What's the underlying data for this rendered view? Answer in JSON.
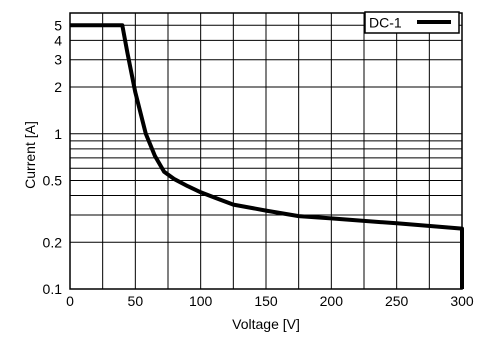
{
  "chart_data": {
    "type": "line",
    "title": "",
    "xlabel": "Voltage [V]",
    "ylabel": "Current [A]",
    "xlim": [
      0,
      300
    ],
    "ylim": [
      0.1,
      6
    ],
    "y_scale": "log",
    "x_ticks": [
      0,
      50,
      100,
      150,
      200,
      250,
      300
    ],
    "x_tick_labels": [
      "0",
      "50",
      "100",
      "150",
      "200",
      "250",
      "300"
    ],
    "x_minor_gridlines": [
      25,
      75,
      125,
      175,
      225,
      275
    ],
    "y_ticks": [
      0.1,
      0.2,
      0.5,
      1,
      2,
      3,
      4,
      5
    ],
    "y_tick_labels": [
      "0.1",
      "0.2",
      "0.5",
      "1",
      "2",
      "3",
      "4",
      "5"
    ],
    "y_gridlines": [
      0.1,
      0.2,
      0.3,
      0.4,
      0.5,
      0.6,
      0.7,
      0.8,
      0.9,
      1,
      2,
      3,
      4,
      5
    ],
    "grid": true,
    "legend_position": "top-right",
    "series": [
      {
        "name": "DC-1",
        "color": "#000000",
        "x": [
          0,
          40,
          44,
          50,
          58,
          65,
          72,
          80,
          90,
          100,
          110,
          125,
          150,
          175,
          200,
          250,
          300,
          300
        ],
        "y": [
          5,
          5,
          3.3,
          1.85,
          1.0,
          0.72,
          0.57,
          0.51,
          0.46,
          0.42,
          0.39,
          0.35,
          0.32,
          0.295,
          0.285,
          0.265,
          0.245,
          0.1
        ]
      }
    ]
  }
}
